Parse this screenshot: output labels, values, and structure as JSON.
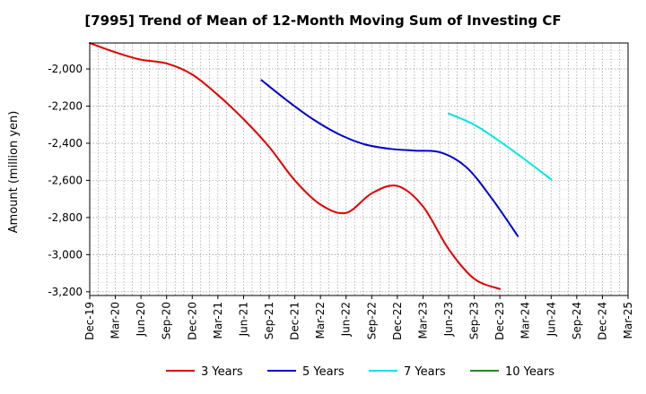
{
  "chart_data": {
    "type": "line",
    "title": "[7995]  Trend of Mean of 12-Month Moving Sum of Investing CF",
    "xlabel": "",
    "ylabel": "Amount (million yen)",
    "ylim": [
      -3220,
      -1860
    ],
    "yticks": [
      -2000,
      -2200,
      -2400,
      -2600,
      -2800,
      -3000,
      -3200
    ],
    "ytick_labels": [
      "-2,000",
      "-2,200",
      "-2,400",
      "-2,600",
      "-2,800",
      "-3,000",
      "-3,200"
    ],
    "xticks": [
      "Dec-19",
      "Mar-20",
      "Jun-20",
      "Sep-20",
      "Dec-20",
      "Mar-21",
      "Jun-21",
      "Sep-21",
      "Dec-21",
      "Mar-22",
      "Jun-22",
      "Sep-22",
      "Dec-22",
      "Mar-23",
      "Jun-23",
      "Sep-23",
      "Dec-23",
      "Mar-24",
      "Jun-24",
      "Sep-24",
      "Dec-24",
      "Mar-25"
    ],
    "grid": true,
    "legend_position": "bottom",
    "series": [
      {
        "name": "3 Years",
        "color": "#e00000",
        "start_index": 0,
        "values": [
          -1860,
          -1910,
          -1950,
          -1970,
          -2030,
          -2140,
          -2270,
          -2420,
          -2600,
          -2730,
          -2775,
          -2670,
          -2630,
          -2740,
          -2970,
          -3130,
          -3185
        ]
      },
      {
        "name": "5 Years",
        "color": "#0000cc",
        "start_index": 6.7,
        "values": [
          -2060,
          -2170,
          -2270,
          -2350,
          -2405,
          -2430,
          -2440,
          -2450,
          -2530,
          -2700,
          -2900
        ]
      },
      {
        "name": "7 Years",
        "color": "#00e5e5",
        "start_index": 14.0,
        "values": [
          -2240,
          -2300,
          -2390,
          -2490,
          -2595
        ]
      },
      {
        "name": "10 Years",
        "color": "#228b22",
        "start_index": 0,
        "values": []
      }
    ]
  }
}
